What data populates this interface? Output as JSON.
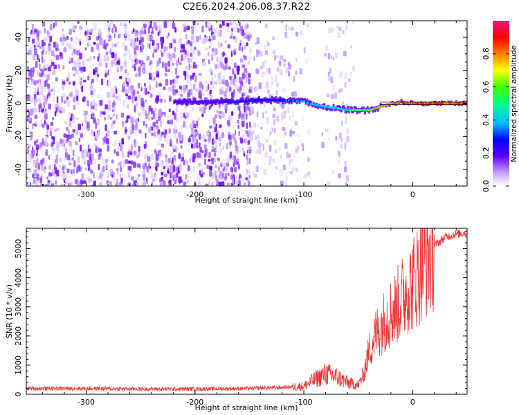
{
  "title": "C2E6.2024.206.08.37.R22",
  "chart_data": [
    {
      "type": "heatmap",
      "title": "C2E6.2024.206.08.37.R22",
      "xlabel": "Height of straight line (km)",
      "ylabel": "Frequency (Hz)",
      "xlim": [
        -355,
        50
      ],
      "ylim": [
        -50,
        50
      ],
      "xticks": [
        "-300",
        "-200",
        "-100",
        "0"
      ],
      "yticks": [
        "-40",
        "-20",
        "0",
        "20",
        "40"
      ],
      "colorbar": {
        "label": "Normalized spectral amplitude",
        "range": [
          0.0,
          1.0
        ],
        "ticks": [
          "0.0",
          "0.2",
          "0.4",
          "0.6",
          "0.8"
        ]
      },
      "signal_track": {
        "x": [
          -220,
          -180,
          -160,
          -140,
          -120,
          -100,
          -90,
          -80,
          -70,
          -60,
          -50,
          -40,
          -30,
          -20,
          -10,
          0,
          10,
          20,
          30,
          40,
          50
        ],
        "freq": [
          1,
          1,
          1,
          2,
          2,
          1,
          -1,
          -2,
          -3,
          -4,
          -4,
          -4,
          -2,
          0,
          1,
          0,
          0,
          0,
          0,
          0,
          0
        ],
        "amplitude": [
          0.15,
          0.2,
          0.25,
          0.3,
          0.35,
          0.4,
          0.45,
          0.5,
          0.5,
          0.55,
          0.6,
          0.65,
          0.7,
          0.8,
          0.85,
          0.9,
          0.9,
          0.9,
          0.9,
          0.9,
          0.9
        ]
      }
    },
    {
      "type": "line",
      "xlabel": "Height of straight line (km)",
      "ylabel": "SNR (10 * v/v)",
      "xlim": [
        -355,
        50
      ],
      "ylim": [
        0,
        5700
      ],
      "xticks": [
        "-300",
        "-200",
        "-100",
        "0"
      ],
      "yticks": [
        "0",
        "1000",
        "2000",
        "3000",
        "4000",
        "5000"
      ],
      "series": [
        {
          "name": "SNR",
          "color": "#ee3333",
          "x": [
            -355,
            -300,
            -250,
            -200,
            -150,
            -120,
            -100,
            -90,
            -80,
            -70,
            -60,
            -50,
            -45,
            -40,
            -35,
            -30,
            -25,
            -20,
            -15,
            -10,
            -5,
            0,
            10,
            20,
            30,
            40,
            50
          ],
          "y": [
            200,
            200,
            180,
            180,
            200,
            230,
            280,
            500,
            700,
            600,
            400,
            300,
            700,
            1500,
            2000,
            2300,
            2600,
            2800,
            3000,
            3300,
            3600,
            3800,
            4500,
            5100,
            5400,
            5500,
            5550
          ]
        }
      ]
    }
  ]
}
